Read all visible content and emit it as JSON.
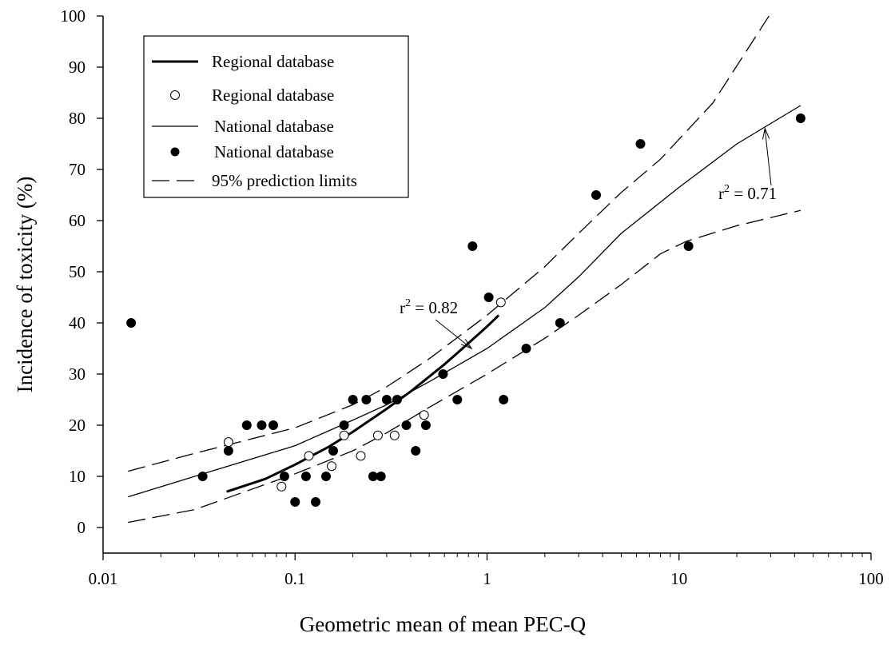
{
  "chart_data": {
    "type": "scatter",
    "xlabel": "Geometric mean of mean PEC-Q",
    "ylabel": "Incidence of toxicity (%)",
    "xscale": "log",
    "xlim": [
      0.01,
      100
    ],
    "ylim": [
      -5,
      100
    ],
    "xticks": [
      0.01,
      0.1,
      1,
      10,
      100
    ],
    "xtick_labels": [
      "0.01",
      "0.1",
      "1",
      "10",
      "100"
    ],
    "yticks": [
      0,
      10,
      20,
      30,
      40,
      50,
      60,
      70,
      80,
      90,
      100
    ],
    "ytick_labels": [
      "0",
      "10",
      "20",
      "30",
      "40",
      "50",
      "60",
      "70",
      "80",
      "90",
      "100"
    ],
    "grid": false,
    "legend_position": "top-left",
    "legend": [
      {
        "label": "Regional database",
        "style": "thick-line"
      },
      {
        "label": "Regional database",
        "style": "open-circle"
      },
      {
        "label": "National database",
        "style": "thin-line"
      },
      {
        "label": "National database",
        "style": "filled-circle"
      },
      {
        "label": "95% prediction limits",
        "style": "dashed-line"
      }
    ],
    "series": [
      {
        "name": "Regional database",
        "kind": "points",
        "marker": "open-circle",
        "points": [
          [
            0.045,
            16.7
          ],
          [
            0.085,
            8
          ],
          [
            0.118,
            14
          ],
          [
            0.155,
            12
          ],
          [
            0.18,
            18
          ],
          [
            0.22,
            14
          ],
          [
            0.27,
            18
          ],
          [
            0.33,
            18
          ],
          [
            0.47,
            22
          ],
          [
            1.18,
            44
          ]
        ]
      },
      {
        "name": "National database",
        "kind": "points",
        "marker": "filled-circle",
        "points": [
          [
            0.014,
            40
          ],
          [
            0.033,
            10
          ],
          [
            0.045,
            15
          ],
          [
            0.056,
            20
          ],
          [
            0.067,
            20
          ],
          [
            0.077,
            20
          ],
          [
            0.088,
            10
          ],
          [
            0.1,
            5
          ],
          [
            0.114,
            10
          ],
          [
            0.128,
            5
          ],
          [
            0.145,
            10
          ],
          [
            0.158,
            15
          ],
          [
            0.18,
            20
          ],
          [
            0.2,
            25
          ],
          [
            0.235,
            25
          ],
          [
            0.255,
            10
          ],
          [
            0.28,
            10
          ],
          [
            0.3,
            25
          ],
          [
            0.34,
            25
          ],
          [
            0.38,
            20
          ],
          [
            0.425,
            15
          ],
          [
            0.48,
            20
          ],
          [
            0.59,
            30
          ],
          [
            0.7,
            25
          ],
          [
            0.84,
            55
          ],
          [
            1.02,
            45
          ],
          [
            1.22,
            25
          ],
          [
            1.6,
            35
          ],
          [
            2.4,
            40
          ],
          [
            3.7,
            65
          ],
          [
            6.3,
            75
          ],
          [
            11.2,
            55
          ],
          [
            43,
            80
          ]
        ]
      },
      {
        "name": "Regional database",
        "kind": "line",
        "style": "thick-line",
        "points": [
          [
            0.044,
            7
          ],
          [
            0.07,
            9.5
          ],
          [
            0.1,
            12.3
          ],
          [
            0.15,
            15.8
          ],
          [
            0.2,
            18.7
          ],
          [
            0.3,
            23.2
          ],
          [
            0.4,
            26.6
          ],
          [
            0.5,
            29.5
          ],
          [
            0.6,
            31.9
          ],
          [
            0.7,
            34.1
          ],
          [
            0.85,
            36.9
          ],
          [
            1.0,
            39.3
          ],
          [
            1.15,
            41.5
          ]
        ]
      },
      {
        "name": "National database",
        "kind": "line",
        "style": "thin-line",
        "points": [
          [
            0.0135,
            6
          ],
          [
            0.03,
            10
          ],
          [
            0.1,
            16
          ],
          [
            0.2,
            21
          ],
          [
            0.3,
            24
          ],
          [
            0.5,
            28.5
          ],
          [
            1,
            35
          ],
          [
            2,
            43
          ],
          [
            3,
            49
          ],
          [
            5,
            57.5
          ],
          [
            10,
            66.5
          ],
          [
            20,
            75
          ],
          [
            43,
            82.5
          ]
        ]
      },
      {
        "name": "95% prediction limits",
        "kind": "line",
        "style": "dashed-line",
        "points": [
          [
            0.0135,
            11
          ],
          [
            0.03,
            14.5
          ],
          [
            0.1,
            19.5
          ],
          [
            0.2,
            24
          ],
          [
            0.3,
            27.5
          ],
          [
            0.5,
            33
          ],
          [
            1,
            41.5
          ],
          [
            2,
            51
          ],
          [
            3,
            57.5
          ],
          [
            5,
            65.5
          ],
          [
            8,
            72
          ],
          [
            15,
            83
          ],
          [
            30,
            100.5
          ]
        ]
      },
      {
        "name": "95% prediction limits",
        "kind": "line",
        "style": "dashed-line",
        "points": [
          [
            0.0135,
            1
          ],
          [
            0.03,
            3.5
          ],
          [
            0.1,
            10.5
          ],
          [
            0.2,
            15
          ],
          [
            0.3,
            18.5
          ],
          [
            0.5,
            23.5
          ],
          [
            1,
            30
          ],
          [
            2,
            37
          ],
          [
            3,
            41.5
          ],
          [
            5,
            47.5
          ],
          [
            8,
            53.5
          ],
          [
            11,
            56
          ],
          [
            20,
            59
          ],
          [
            43,
            62
          ]
        ]
      }
    ],
    "annotations": [
      {
        "text": "r",
        "superscript": "2",
        "suffix": " = 0.82",
        "target": [
          0.83,
          35
        ]
      },
      {
        "text": "r",
        "superscript": "2",
        "suffix": " = 0.71",
        "target": [
          28,
          78
        ]
      }
    ]
  }
}
